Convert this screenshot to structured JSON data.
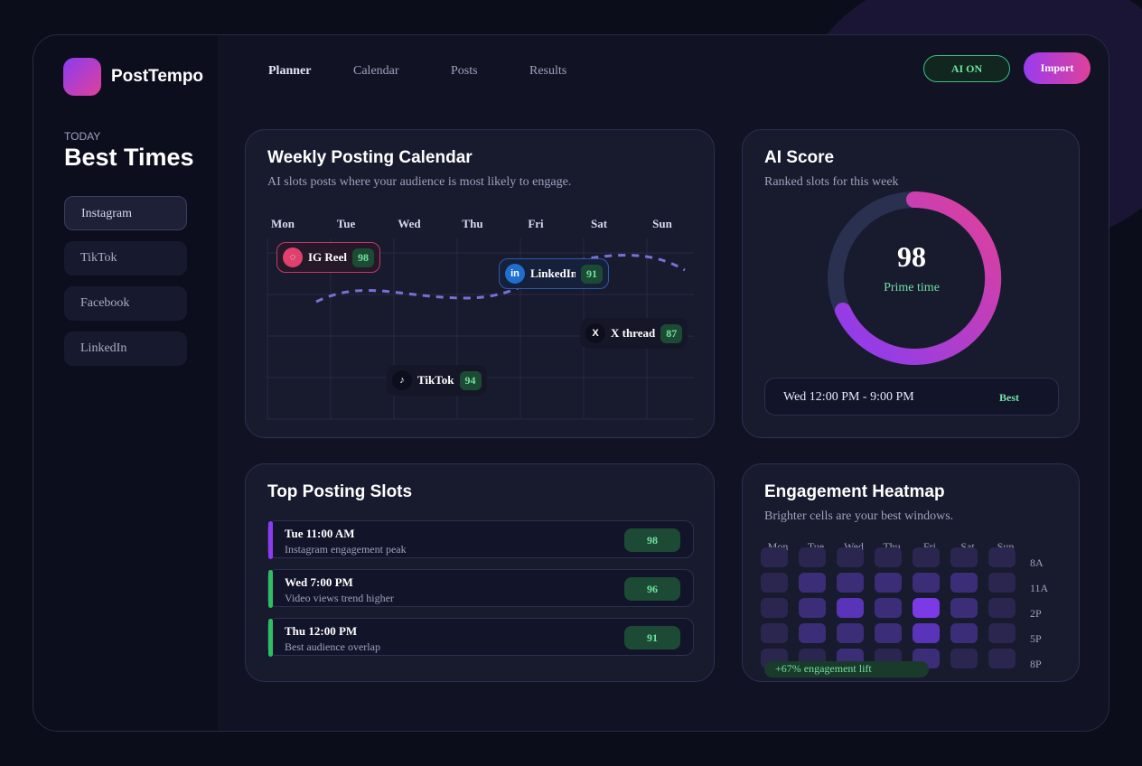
{
  "brand": "PostTempo",
  "nav": [
    "Planner",
    "Calendar",
    "Posts",
    "Results"
  ],
  "actions": {
    "ai": "AI ON",
    "import": "Import"
  },
  "sidebar": {
    "eyebrow": "TODAY",
    "title": "Best Times",
    "platforms": [
      "Instagram",
      "TikTok",
      "Facebook",
      "LinkedIn"
    ]
  },
  "calendar": {
    "title": "Weekly Posting Calendar",
    "subtitle": "AI slots posts where your audience is most likely to engage.",
    "days": [
      "Mon",
      "Tue",
      "Wed",
      "Thu",
      "Fri",
      "Sat",
      "Sun"
    ],
    "posts": [
      {
        "label": "IG Reel",
        "score": 98
      },
      {
        "icon": "in",
        "label": "LinkedIn",
        "score": 91
      },
      {
        "icon": "X",
        "label": "X thread",
        "score": 87
      },
      {
        "icon": "♪",
        "label": "TikTok",
        "score": 94
      }
    ]
  },
  "score": {
    "title": "AI Score",
    "subtitle": "Ranked slots for this week",
    "value": 98,
    "status": "Prime time",
    "window": "Wed 12:00 PM - 9:00 PM",
    "badge": "Best"
  },
  "slots": {
    "title": "Top Posting Slots",
    "items": [
      {
        "time": "Tue 11:00 AM",
        "note": "Instagram engagement peak",
        "score": 98
      },
      {
        "time": "Wed 7:00 PM",
        "note": "Video views trend higher",
        "score": 96
      },
      {
        "time": "Thu 12:00 PM",
        "note": "Best audience overlap",
        "score": 91
      }
    ]
  },
  "heatmap": {
    "title": "Engagement Heatmap",
    "subtitle": "Brighter cells are your best windows.",
    "days": [
      "Mon",
      "Tue",
      "Wed",
      "Thu",
      "Fri",
      "Sat",
      "Sun"
    ],
    "hours": [
      "8A",
      "11A",
      "2P",
      "5P",
      "8P"
    ],
    "levels": [
      [
        1,
        1,
        1,
        1,
        1,
        1,
        1
      ],
      [
        1,
        2,
        2,
        2,
        2,
        2,
        1
      ],
      [
        1,
        2,
        3,
        2,
        4,
        2,
        1
      ],
      [
        1,
        2,
        2,
        2,
        3,
        2,
        1
      ],
      [
        1,
        1,
        2,
        1,
        2,
        1,
        1
      ]
    ],
    "lift": "+67% engagement lift"
  }
}
